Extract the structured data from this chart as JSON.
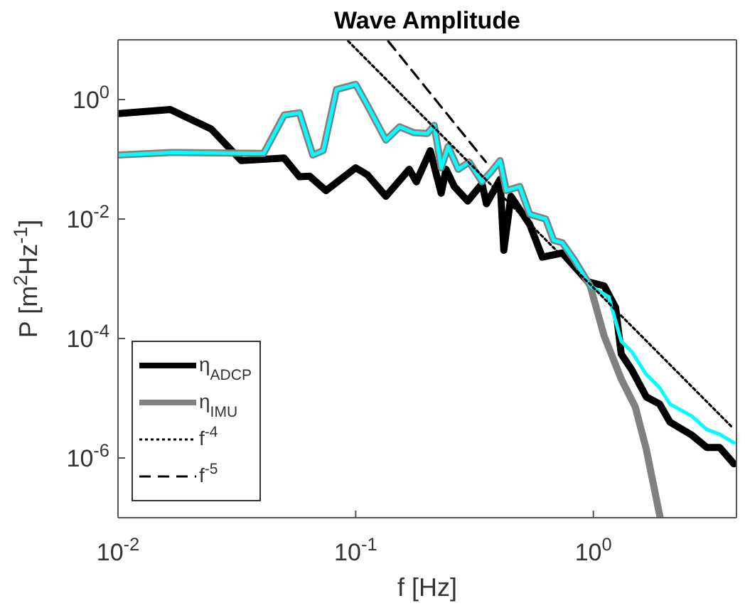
{
  "chart_data": {
    "type": "line",
    "title": "Wave Amplitude",
    "xlabel": "f [Hz]",
    "ylabel": "P [m$^{2}$Hz$^{-1}$]",
    "log": "xy",
    "xlim": [
      0.01,
      4
    ],
    "ylim": [
      1e-07,
      10
    ],
    "xticks": [
      {
        "value": 0.01,
        "label": "10$^{-2}$"
      },
      {
        "value": 0.1,
        "label": "10$^{-1}$"
      },
      {
        "value": 1,
        "label": "10$^{0}$"
      }
    ],
    "yticks": [
      {
        "value": 1e-06,
        "label": "10$^{-6}$"
      },
      {
        "value": 0.0001,
        "label": "10$^{-4}$"
      },
      {
        "value": 0.01,
        "label": "10$^{-2}$"
      },
      {
        "value": 1,
        "label": "10$^{0}$"
      }
    ],
    "grid": false,
    "legend": "bottom left",
    "series": [
      {
        "name": "η$_{ADCP}$",
        "color": "#000000",
        "line_style": "solid",
        "x": [
          0.01,
          0.0166,
          0.0247,
          0.033,
          0.05,
          0.058,
          0.064,
          0.075,
          0.1,
          0.112,
          0.134,
          0.168,
          0.18,
          0.206,
          0.229,
          0.24,
          0.26,
          0.296,
          0.34,
          0.355,
          0.405,
          0.42,
          0.45,
          0.54,
          0.61,
          0.74,
          0.95,
          1.11,
          1.24,
          1.31,
          1.45,
          1.67,
          1.9,
          2.1,
          2.6,
          3.0,
          3.4,
          3.9
        ],
        "values": [
          0.58,
          0.68,
          0.32,
          0.095,
          0.105,
          0.051,
          0.052,
          0.03,
          0.072,
          0.055,
          0.024,
          0.068,
          0.042,
          0.139,
          0.027,
          0.068,
          0.035,
          0.02,
          0.039,
          0.018,
          0.046,
          0.003,
          0.024,
          0.0081,
          0.0023,
          0.0027,
          0.00089,
          0.00076,
          0.00033,
          5.5e-05,
          3e-05,
          1.05e-05,
          8e-06,
          4e-06,
          2.4e-06,
          1.5e-06,
          1.5e-06,
          8e-07
        ]
      },
      {
        "name": "η$_{IMU}$",
        "color": "#808080",
        "line_style": "solid",
        "x": [
          0.01,
          0.0166,
          0.041,
          0.05,
          0.058,
          0.066,
          0.073,
          0.083,
          0.1,
          0.112,
          0.134,
          0.153,
          0.175,
          0.2,
          0.214,
          0.229,
          0.245,
          0.27,
          0.3,
          0.34,
          0.37,
          0.405,
          0.43,
          0.49,
          0.54,
          0.63,
          0.68,
          0.74,
          0.83,
          0.97,
          1.11,
          1.31,
          1.5,
          1.67,
          1.91
        ],
        "values": [
          0.118,
          0.13,
          0.125,
          0.55,
          0.6,
          0.118,
          0.14,
          1.47,
          1.8,
          0.8,
          0.21,
          0.35,
          0.28,
          0.27,
          0.37,
          0.072,
          0.164,
          0.068,
          0.09,
          0.042,
          0.061,
          0.095,
          0.03,
          0.035,
          0.012,
          0.01,
          0.0044,
          0.004,
          0.0021,
          0.00076,
          0.00011,
          2.1e-05,
          7.2e-06,
          1.4e-06,
          1e-07
        ]
      },
      {
        "color": "#00ffff",
        "line_style": "solid",
        "x": [
          0.01,
          0.0166,
          0.041,
          0.05,
          0.058,
          0.066,
          0.073,
          0.083,
          0.1,
          0.112,
          0.134,
          0.153,
          0.175,
          0.2,
          0.214,
          0.229,
          0.245,
          0.27,
          0.3,
          0.34,
          0.37,
          0.405,
          0.43,
          0.49,
          0.54,
          0.63,
          0.68,
          0.74,
          0.83,
          0.97,
          1.16,
          1.31,
          1.45,
          1.67,
          1.9,
          2.1,
          2.6,
          3.0,
          3.4,
          3.9
        ],
        "values": [
          0.118,
          0.13,
          0.125,
          0.55,
          0.6,
          0.118,
          0.14,
          1.47,
          1.8,
          0.8,
          0.21,
          0.35,
          0.28,
          0.27,
          0.37,
          0.072,
          0.164,
          0.068,
          0.09,
          0.042,
          0.061,
          0.095,
          0.03,
          0.035,
          0.012,
          0.01,
          0.0044,
          0.004,
          0.0021,
          0.00076,
          0.0005,
          9e-05,
          6e-05,
          2.5e-05,
          1.5e-05,
          8e-06,
          5e-06,
          3e-06,
          2.5e-06,
          1.8e-06
        ]
      },
      {
        "name": "f$^{-4}$",
        "color": "#000000",
        "line_style": "dotted",
        "x": [
          0.093,
          3.8
        ],
        "values": [
          9.5,
          3.4e-06
        ]
      },
      {
        "name": "f$^{-5}$",
        "color": "#000000",
        "line_style": "dashed",
        "x": [
          0.137,
          0.353
        ],
        "values": [
          9.5,
          0.09
        ]
      }
    ]
  }
}
